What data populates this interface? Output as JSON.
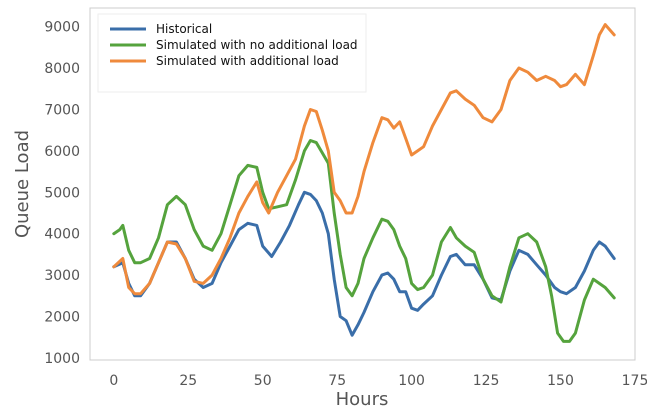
{
  "chart_data": {
    "type": "line",
    "title": "",
    "xlabel": "Hours",
    "ylabel": "Queue Load",
    "xlim": [
      -8,
      175
    ],
    "ylim": [
      950,
      9450
    ],
    "xticks": [
      0,
      25,
      50,
      75,
      100,
      125,
      150,
      175
    ],
    "yticks": [
      1000,
      2000,
      3000,
      4000,
      5000,
      6000,
      7000,
      8000,
      9000
    ],
    "grid": false,
    "legend_position": "top-left",
    "series": [
      {
        "name": "Historical",
        "color": "#3a6ea9",
        "x": [
          0,
          3,
          5,
          7,
          9,
          12,
          15,
          18,
          21,
          24,
          27,
          30,
          33,
          36,
          39,
          42,
          45,
          48,
          50,
          53,
          56,
          59,
          62,
          64,
          66,
          68,
          70,
          72,
          74,
          76,
          78,
          80,
          82,
          84,
          87,
          90,
          92,
          94,
          96,
          98,
          100,
          102,
          104,
          107,
          110,
          113,
          115,
          118,
          121,
          124,
          127,
          130,
          133,
          136,
          139,
          142,
          145,
          148,
          150,
          152,
          155,
          158,
          161,
          163,
          165,
          168
        ],
        "y": [
          3200,
          3300,
          2800,
          2500,
          2500,
          2800,
          3300,
          3800,
          3800,
          3400,
          2900,
          2700,
          2800,
          3300,
          3700,
          4100,
          4250,
          4200,
          3700,
          3450,
          3800,
          4200,
          4700,
          5000,
          4950,
          4800,
          4500,
          4000,
          2900,
          2000,
          1900,
          1550,
          1800,
          2100,
          2600,
          3000,
          3050,
          2900,
          2600,
          2600,
          2200,
          2150,
          2300,
          2500,
          3000,
          3450,
          3500,
          3250,
          3250,
          2900,
          2450,
          2400,
          3100,
          3600,
          3500,
          3250,
          3000,
          2700,
          2600,
          2550,
          2700,
          3100,
          3600,
          3800,
          3700,
          3400
        ]
      },
      {
        "name": "Simulated with no additional load",
        "color": "#55a33d",
        "x": [
          0,
          2,
          3,
          5,
          7,
          9,
          12,
          15,
          18,
          21,
          24,
          27,
          30,
          33,
          36,
          39,
          42,
          45,
          48,
          50,
          52,
          55,
          58,
          61,
          64,
          66,
          68,
          70,
          72,
          74,
          76,
          78,
          80,
          82,
          84,
          87,
          90,
          92,
          94,
          96,
          98,
          100,
          102,
          104,
          107,
          110,
          113,
          115,
          118,
          121,
          124,
          127,
          130,
          133,
          136,
          139,
          142,
          145,
          147,
          149,
          151,
          153,
          155,
          158,
          161,
          163,
          165,
          168
        ],
        "y": [
          4000,
          4100,
          4200,
          3600,
          3300,
          3300,
          3400,
          3900,
          4700,
          4900,
          4700,
          4100,
          3700,
          3600,
          4000,
          4700,
          5400,
          5650,
          5600,
          5000,
          4600,
          4650,
          4700,
          5300,
          6000,
          6250,
          6200,
          5950,
          5700,
          4500,
          3500,
          2700,
          2500,
          2800,
          3400,
          3900,
          4350,
          4300,
          4100,
          3700,
          3400,
          2800,
          2650,
          2700,
          3000,
          3800,
          4150,
          3900,
          3700,
          3550,
          2900,
          2500,
          2350,
          3200,
          3900,
          4000,
          3800,
          3200,
          2500,
          1600,
          1400,
          1400,
          1600,
          2400,
          2900,
          2800,
          2700,
          2450
        ]
      },
      {
        "name": "Simulated with additional load",
        "color": "#ef8a3c",
        "x": [
          0,
          3,
          5,
          7,
          9,
          12,
          15,
          18,
          21,
          24,
          27,
          30,
          33,
          36,
          39,
          42,
          45,
          48,
          50,
          52,
          55,
          58,
          61,
          64,
          66,
          68,
          70,
          72,
          74,
          76,
          78,
          80,
          82,
          84,
          87,
          90,
          92,
          94,
          96,
          98,
          100,
          102,
          104,
          107,
          110,
          113,
          115,
          118,
          121,
          124,
          127,
          130,
          133,
          136,
          139,
          142,
          145,
          148,
          150,
          152,
          155,
          158,
          161,
          163,
          165,
          168
        ],
        "y": [
          3200,
          3400,
          2700,
          2550,
          2550,
          2800,
          3300,
          3800,
          3750,
          3400,
          2850,
          2800,
          3000,
          3400,
          3900,
          4500,
          4900,
          5250,
          4750,
          4500,
          5000,
          5400,
          5800,
          6600,
          7000,
          6950,
          6500,
          6000,
          5000,
          4800,
          4500,
          4500,
          4900,
          5500,
          6200,
          6800,
          6750,
          6550,
          6700,
          6300,
          5900,
          6000,
          6100,
          6600,
          7000,
          7400,
          7450,
          7250,
          7100,
          6800,
          6700,
          7000,
          7700,
          8000,
          7900,
          7700,
          7800,
          7700,
          7550,
          7600,
          7850,
          7600,
          8300,
          8800,
          9050,
          8800
        ]
      }
    ]
  }
}
